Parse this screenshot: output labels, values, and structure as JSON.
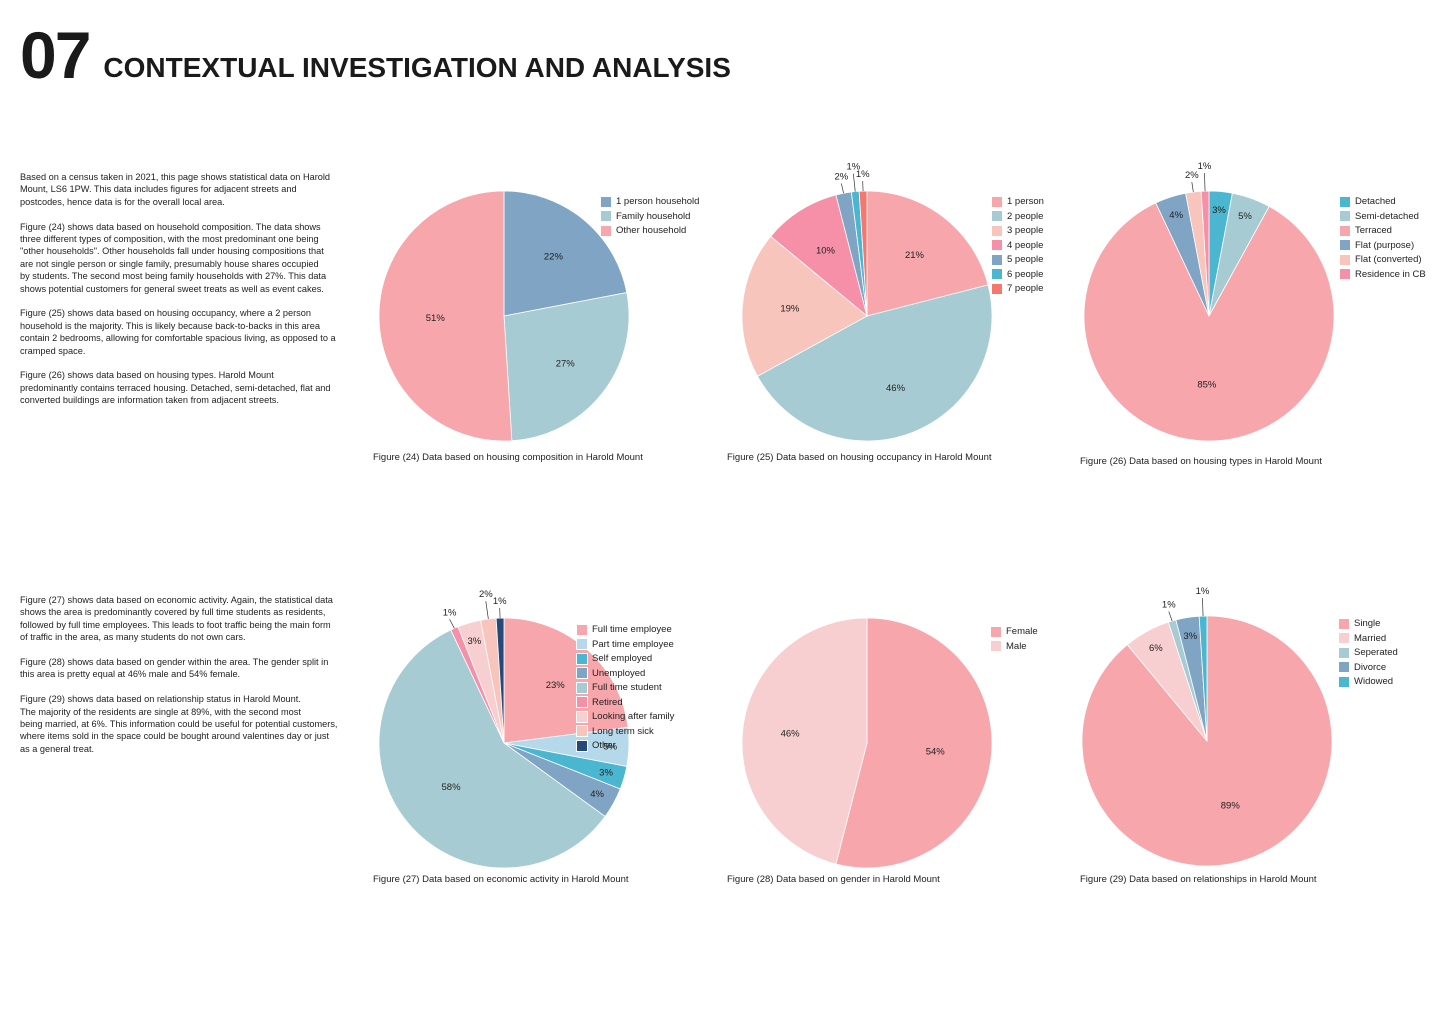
{
  "header": {
    "number": "07",
    "title": "CONTEXTUAL INVESTIGATION AND ANALYSIS"
  },
  "text": {
    "top_paragraphs": [
      "Based on a census taken in 2021, this page shows statistical data on Harold\nMount, LS6 1PW. This data includes figures for adjacent streets and\npostcodes, hence data is for the overall local area.",
      "Figure (24) shows data based on household composition. The data shows\nthree different types of composition, with the most predominant one being\n\"other households\". Other households fall under housing compositions that\nare not single person or single family, presumably house shares occupied\nby students. The second most being family households with 27%. This data\nshows potential customers for general sweet treats as well as event cakes.",
      "Figure (25) shows data based on housing occupancy, where a 2 person\nhousehold is the majority. This is likely because back-to-backs in this area\ncontain 2 bedrooms, allowing for comfortable spacious living, as opposed to a\ncramped space.",
      "Figure (26) shows data based on housing types. Harold Mount\npredominantly contains terraced  housing. Detached, semi-detached, flat and\nconverted buildings are information taken from adjacent streets."
    ],
    "bottom_paragraphs": [
      "Figure (27) shows data based on economic activity. Again, the statistical data\nshows the area is predominantly covered by full time students as residents,\nfollowed by full time employees. This leads to foot traffic being the main form\nof traffic in the area, as many students do not own cars.",
      "Figure (28) shows data based on gender within the area. The gender split in\nthis area is pretty equal at 46% male and 54% female.",
      "Figure (29) shows data based on relationship status in Harold Mount.\nThe majority of the residents are single at 89%, with the second most\nbeing married, at 6%. This information could be useful for potential customers,\nwhere items sold in the space could be bought around valentines day or just\nas a general treat."
    ]
  },
  "chart_data": [
    {
      "id": "fig24",
      "type": "pie",
      "caption": "Figure (24) Data based on housing composition in Harold Mount",
      "slices": [
        {
          "label": "1 person household",
          "value": 22,
          "color": "#7fa4c4",
          "display": "22%"
        },
        {
          "label": "Family household",
          "value": 27,
          "color": "#a7cbd2",
          "display": "27%"
        },
        {
          "label": "Other household",
          "value": 51,
          "color": "#f7a6ab",
          "display": "51%"
        }
      ]
    },
    {
      "id": "fig25",
      "type": "pie",
      "caption": "Figure (25) Data based on housing occupancy in Harold Mount",
      "slices": [
        {
          "label": "1 person",
          "value": 21,
          "color": "#f7a6ab",
          "display": "21%"
        },
        {
          "label": "2 people",
          "value": 46,
          "color": "#a7cbd2",
          "display": "46%"
        },
        {
          "label": "3 people",
          "value": 19,
          "color": "#f7c5bb",
          "display": "19%"
        },
        {
          "label": "4 people",
          "value": 10,
          "color": "#f590a8",
          "display": "10%"
        },
        {
          "label": "5 people",
          "value": 2,
          "color": "#7fa4c4",
          "display": "2%"
        },
        {
          "label": "6 people",
          "value": 1,
          "color": "#4bb6cf",
          "display": "1%"
        },
        {
          "label": "7 people",
          "value": 1,
          "color": "#f7776f",
          "display": "1%"
        }
      ]
    },
    {
      "id": "fig26",
      "type": "pie",
      "caption": "Figure (26) Data based on housing types in Harold Mount",
      "slices": [
        {
          "label": "Detached",
          "value": 3,
          "color": "#4bb6cf",
          "display": "3%"
        },
        {
          "label": "Semi-detached",
          "value": 5,
          "color": "#a7cbd2",
          "display": "5%"
        },
        {
          "label": "Terraced",
          "value": 85,
          "color": "#f7a6ab",
          "display": "85%"
        },
        {
          "label": "Flat (purpose)",
          "value": 4,
          "color": "#7fa4c4",
          "display": "4%"
        },
        {
          "label": "Flat (converted)",
          "value": 2,
          "color": "#f7c5bb",
          "display": "2%"
        },
        {
          "label": "Residence in CB",
          "value": 1,
          "color": "#f590a8",
          "display": "1%"
        }
      ]
    },
    {
      "id": "fig27",
      "type": "pie",
      "caption": "Figure (27) Data based on economic activity in Harold Mount",
      "slices": [
        {
          "label": "Full time employee",
          "value": 23,
          "color": "#f7a6ab",
          "display": "23%"
        },
        {
          "label": "Part time employee",
          "value": 5,
          "color": "#b5d8ea",
          "display": "5%"
        },
        {
          "label": "Self employed",
          "value": 3,
          "color": "#4bb6cf",
          "display": "3%"
        },
        {
          "label": "Unemployed",
          "value": 4,
          "color": "#7fa4c4",
          "display": "4%"
        },
        {
          "label": "Full time student",
          "value": 58,
          "color": "#a7cbd2",
          "display": "58%"
        },
        {
          "label": "Retired",
          "value": 1,
          "color": "#f590a8",
          "display": "1%"
        },
        {
          "label": "Looking after family",
          "value": 3,
          "color": "#f7cfd0",
          "display": "3%"
        },
        {
          "label": "Long term sick",
          "value": 2,
          "color": "#f7c5bb",
          "display": "2%"
        },
        {
          "label": "Other",
          "value": 1,
          "color": "#24497a",
          "display": "1%"
        }
      ]
    },
    {
      "id": "fig28",
      "type": "pie",
      "caption": "Figure (28) Data based on gender in Harold Mount",
      "slices": [
        {
          "label": "Female",
          "value": 54,
          "color": "#f7a6ab",
          "display": "54%"
        },
        {
          "label": "Male",
          "value": 46,
          "color": "#f7cfd0",
          "display": "46%"
        }
      ]
    },
    {
      "id": "fig29",
      "type": "pie",
      "caption": "Figure (29) Data based on relationships in Harold Mount",
      "slices": [
        {
          "label": "Single",
          "value": 89,
          "color": "#f7a6ab",
          "display": "89%"
        },
        {
          "label": "Married",
          "value": 6,
          "color": "#f7cfd0",
          "display": "6%"
        },
        {
          "label": "Seperated",
          "value": 1,
          "color": "#a7cbd2",
          "display": "1%"
        },
        {
          "label": "Divorce",
          "value": 3,
          "color": "#7fa4c4",
          "display": "3%"
        },
        {
          "label": "Widowed",
          "value": 1,
          "color": "#4bb6cf",
          "display": "1%"
        }
      ]
    }
  ]
}
